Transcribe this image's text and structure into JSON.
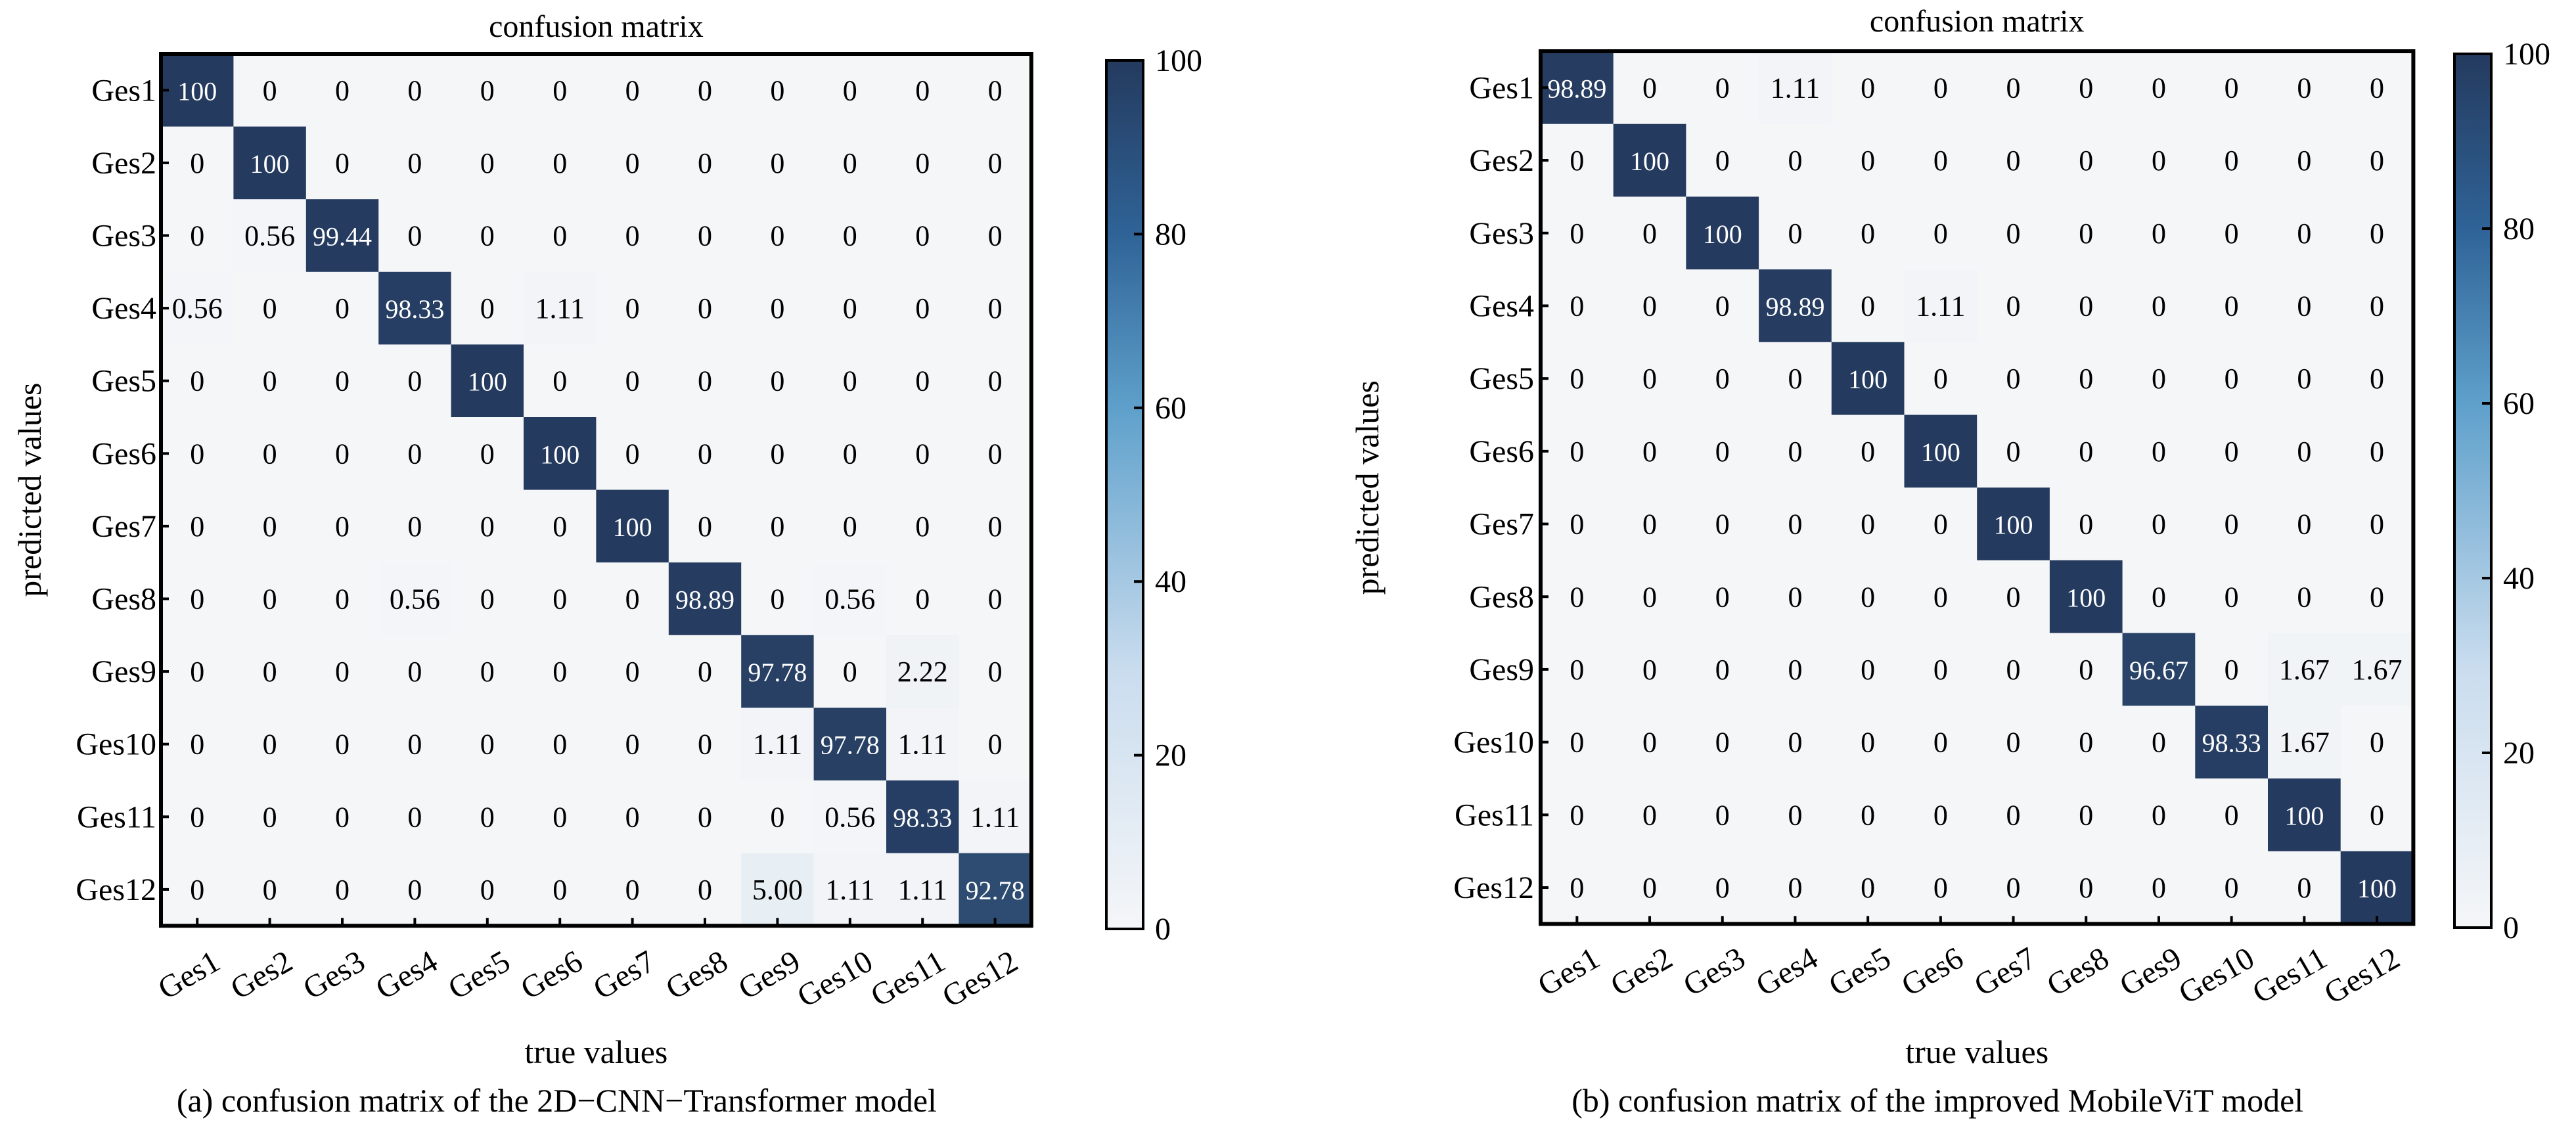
{
  "chart_data": [
    {
      "type": "heatmap",
      "title": "confusion matrix",
      "caption": "(a) confusion matrix of the 2D−CNN−Transformer model",
      "xlabel": "true values",
      "ylabel": "predicted values",
      "x_categories": [
        "Ges1",
        "Ges2",
        "Ges3",
        "Ges4",
        "Ges5",
        "Ges6",
        "Ges7",
        "Ges8",
        "Ges9",
        "Ges10",
        "Ges11",
        "Ges12"
      ],
      "y_categories": [
        "Ges1",
        "Ges2",
        "Ges3",
        "Ges4",
        "Ges5",
        "Ges6",
        "Ges7",
        "Ges8",
        "Ges9",
        "Ges10",
        "Ges11",
        "Ges12"
      ],
      "cells": [
        [
          "100",
          "0",
          "0",
          "0",
          "0",
          "0",
          "0",
          "0",
          "0",
          "0",
          "0",
          "0"
        ],
        [
          "0",
          "100",
          "0",
          "0",
          "0",
          "0",
          "0",
          "0",
          "0",
          "0",
          "0",
          "0"
        ],
        [
          "0",
          "0.56",
          "99.44",
          "0",
          "0",
          "0",
          "0",
          "0",
          "0",
          "0",
          "0",
          "0"
        ],
        [
          "0.56",
          "0",
          "0",
          "98.33",
          "0",
          "1.11",
          "0",
          "0",
          "0",
          "0",
          "0",
          "0"
        ],
        [
          "0",
          "0",
          "0",
          "0",
          "100",
          "0",
          "0",
          "0",
          "0",
          "0",
          "0",
          "0"
        ],
        [
          "0",
          "0",
          "0",
          "0",
          "0",
          "100",
          "0",
          "0",
          "0",
          "0",
          "0",
          "0"
        ],
        [
          "0",
          "0",
          "0",
          "0",
          "0",
          "0",
          "100",
          "0",
          "0",
          "0",
          "0",
          "0"
        ],
        [
          "0",
          "0",
          "0",
          "0.56",
          "0",
          "0",
          "0",
          "98.89",
          "0",
          "0.56",
          "0",
          "0"
        ],
        [
          "0",
          "0",
          "0",
          "0",
          "0",
          "0",
          "0",
          "0",
          "97.78",
          "0",
          "2.22",
          "0"
        ],
        [
          "0",
          "0",
          "0",
          "0",
          "0",
          "0",
          "0",
          "0",
          "1.11",
          "97.78",
          "1.11",
          "0"
        ],
        [
          "0",
          "0",
          "0",
          "0",
          "0",
          "0",
          "0",
          "0",
          "0",
          "0.56",
          "98.33",
          "1.11"
        ],
        [
          "0",
          "0",
          "0",
          "0",
          "0",
          "0",
          "0",
          "0",
          "5.00",
          "1.11",
          "1.11",
          "92.78"
        ]
      ],
      "colorbar": {
        "range": [
          0,
          100
        ],
        "ticks": [
          "0",
          "20",
          "40",
          "60",
          "80",
          "100"
        ]
      },
      "colors": {
        "low": "#f5f6f8",
        "mid": "#5ea0cb",
        "high": "#243a5e"
      }
    },
    {
      "type": "heatmap",
      "title": "confusion matrix",
      "caption": "(b) confusion matrix of the improved MobileViT model",
      "xlabel": "true values",
      "ylabel": "predicted values",
      "x_categories": [
        "Ges1",
        "Ges2",
        "Ges3",
        "Ges4",
        "Ges5",
        "Ges6",
        "Ges7",
        "Ges8",
        "Ges9",
        "Ges10",
        "Ges11",
        "Ges12"
      ],
      "y_categories": [
        "Ges1",
        "Ges2",
        "Ges3",
        "Ges4",
        "Ges5",
        "Ges6",
        "Ges7",
        "Ges8",
        "Ges9",
        "Ges10",
        "Ges11",
        "Ges12"
      ],
      "cells": [
        [
          "98.89",
          "0",
          "0",
          "1.11",
          "0",
          "0",
          "0",
          "0",
          "0",
          "0",
          "0",
          "0"
        ],
        [
          "0",
          "100",
          "0",
          "0",
          "0",
          "0",
          "0",
          "0",
          "0",
          "0",
          "0",
          "0"
        ],
        [
          "0",
          "0",
          "100",
          "0",
          "0",
          "0",
          "0",
          "0",
          "0",
          "0",
          "0",
          "0"
        ],
        [
          "0",
          "0",
          "0",
          "98.89",
          "0",
          "1.11",
          "0",
          "0",
          "0",
          "0",
          "0",
          "0"
        ],
        [
          "0",
          "0",
          "0",
          "0",
          "100",
          "0",
          "0",
          "0",
          "0",
          "0",
          "0",
          "0"
        ],
        [
          "0",
          "0",
          "0",
          "0",
          "0",
          "100",
          "0",
          "0",
          "0",
          "0",
          "0",
          "0"
        ],
        [
          "0",
          "0",
          "0",
          "0",
          "0",
          "0",
          "100",
          "0",
          "0",
          "0",
          "0",
          "0"
        ],
        [
          "0",
          "0",
          "0",
          "0",
          "0",
          "0",
          "0",
          "100",
          "0",
          "0",
          "0",
          "0"
        ],
        [
          "0",
          "0",
          "0",
          "0",
          "0",
          "0",
          "0",
          "0",
          "96.67",
          "0",
          "1.67",
          "1.67"
        ],
        [
          "0",
          "0",
          "0",
          "0",
          "0",
          "0",
          "0",
          "0",
          "0",
          "98.33",
          "1.67",
          "0"
        ],
        [
          "0",
          "0",
          "0",
          "0",
          "0",
          "0",
          "0",
          "0",
          "0",
          "0",
          "100",
          "0"
        ],
        [
          "0",
          "0",
          "0",
          "0",
          "0",
          "0",
          "0",
          "0",
          "0",
          "0",
          "0",
          "100"
        ]
      ],
      "colorbar": {
        "range": [
          0,
          100
        ],
        "ticks": [
          "0",
          "20",
          "40",
          "60",
          "80",
          "100"
        ]
      },
      "colors": {
        "low": "#f5f6f8",
        "mid": "#5ea0cb",
        "high": "#243a5e"
      }
    }
  ]
}
